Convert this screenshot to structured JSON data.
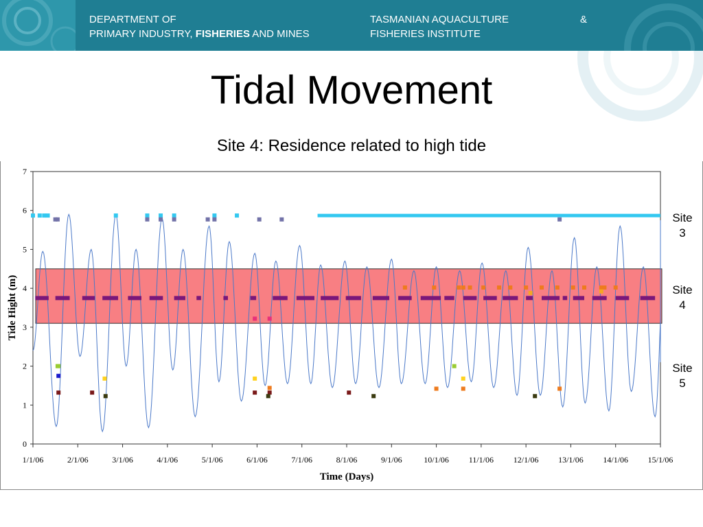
{
  "header": {
    "dept_line1": "DEPARTMENT OF",
    "dept_line2_a": "PRIMARY INDUSTRY, ",
    "dept_line2_b": "FISHERIES",
    "dept_line2_c": " AND MINES",
    "inst_line1": "TASMANIAN AQUACULTURE",
    "inst_amp": "&",
    "inst_line2": "FISHERIES INSTITUTE"
  },
  "slide_title": "Tidal Movement",
  "chart_data": {
    "type": "line",
    "title": "Site 4: Residence related to high tide",
    "xlabel": "Time (Days)",
    "ylabel": "Tide Hight (m)",
    "categories": [
      "1/1/06",
      "2/1/06",
      "3/1/06",
      "4/1/06",
      "5/1/06",
      "6/1/06",
      "7/1/06",
      "8/1/06",
      "9/1/06",
      "10/1/06",
      "11/1/06",
      "12/1/06",
      "13/1/06",
      "14/1/06",
      "15/1/06"
    ],
    "x_range": [
      0,
      14
    ],
    "ylim": [
      0,
      7
    ],
    "yticks": [
      0,
      1,
      2,
      3,
      4,
      5,
      6,
      7
    ],
    "grid": false,
    "legend": "none",
    "tide_series": {
      "color": "#4a78c8",
      "peaks": [
        [
          0.0,
          2.4
        ],
        [
          0.22,
          4.95
        ],
        [
          0.52,
          0.45
        ],
        [
          0.8,
          5.9
        ],
        [
          1.05,
          2.25
        ],
        [
          1.3,
          5.0
        ],
        [
          1.55,
          0.32
        ],
        [
          1.85,
          5.9
        ],
        [
          2.08,
          2.0
        ],
        [
          2.3,
          5.0
        ],
        [
          2.58,
          0.42
        ],
        [
          2.88,
          5.8
        ],
        [
          3.12,
          1.9
        ],
        [
          3.35,
          5.0
        ],
        [
          3.62,
          0.7
        ],
        [
          3.93,
          5.6
        ],
        [
          4.15,
          1.6
        ],
        [
          4.38,
          5.2
        ],
        [
          4.65,
          1.1
        ],
        [
          4.95,
          4.9
        ],
        [
          5.18,
          1.5
        ],
        [
          5.42,
          4.7
        ],
        [
          5.68,
          1.55
        ],
        [
          5.95,
          5.1
        ],
        [
          6.2,
          1.55
        ],
        [
          6.42,
          4.6
        ],
        [
          6.68,
          1.45
        ],
        [
          6.96,
          4.7
        ],
        [
          7.2,
          1.55
        ],
        [
          7.45,
          4.55
        ],
        [
          7.72,
          1.45
        ],
        [
          8.0,
          4.75
        ],
        [
          8.22,
          1.55
        ],
        [
          8.5,
          4.45
        ],
        [
          8.75,
          1.55
        ],
        [
          9.0,
          4.55
        ],
        [
          9.25,
          1.45
        ],
        [
          9.52,
          4.45
        ],
        [
          9.78,
          1.6
        ],
        [
          10.02,
          4.65
        ],
        [
          10.28,
          1.45
        ],
        [
          10.55,
          4.45
        ],
        [
          10.8,
          1.25
        ],
        [
          11.05,
          5.05
        ],
        [
          11.32,
          1.25
        ],
        [
          11.58,
          4.45
        ],
        [
          11.82,
          0.95
        ],
        [
          12.08,
          5.3
        ],
        [
          12.32,
          1.05
        ],
        [
          12.58,
          4.55
        ],
        [
          12.85,
          0.85
        ],
        [
          13.1,
          5.6
        ],
        [
          13.35,
          1.35
        ],
        [
          13.62,
          4.55
        ],
        [
          13.88,
          0.7
        ],
        [
          14.12,
          5.75
        ],
        [
          14.3,
          2.1
        ]
      ]
    },
    "site_band": {
      "y_min": 3.1,
      "y_max": 4.5,
      "fill": "#f87f83",
      "edge": "#333333"
    },
    "site_labels": [
      {
        "label": "Site 3",
        "line1": "Site",
        "line2": "3",
        "y": 5.6
      },
      {
        "label": "Site 4",
        "line1": "Site",
        "line2": "4",
        "y": 3.75
      },
      {
        "label": "Site 5",
        "line1": "Site",
        "line2": "5",
        "y": 1.75
      }
    ],
    "site3_line": {
      "y": 5.87,
      "color": "#33c8f0",
      "segments": [
        [
          6.35,
          14.3
        ]
      ],
      "points": [
        0.0,
        0.15,
        0.25,
        0.33,
        1.85,
        2.55,
        2.85,
        3.15,
        4.05,
        4.55
      ]
    },
    "site3_purple": {
      "y": 5.77,
      "color": "#7272a8",
      "points": [
        0.5,
        0.55,
        2.55,
        2.85,
        3.15,
        3.9,
        4.05,
        5.05,
        5.55,
        11.75
      ]
    },
    "site4_line": {
      "y": 3.75,
      "color": "#7a177a",
      "segments": [
        [
          0.05,
          0.35
        ],
        [
          0.5,
          0.82
        ],
        [
          1.1,
          1.38
        ],
        [
          1.55,
          1.9
        ],
        [
          2.12,
          2.42
        ],
        [
          2.6,
          2.9
        ],
        [
          3.15,
          3.4
        ],
        [
          3.65,
          3.75
        ],
        [
          4.25,
          4.35
        ],
        [
          4.85,
          4.98
        ],
        [
          5.35,
          5.68
        ],
        [
          5.88,
          6.28
        ],
        [
          6.42,
          6.82
        ],
        [
          6.98,
          7.32
        ],
        [
          7.58,
          7.95
        ],
        [
          8.15,
          8.45
        ],
        [
          8.65,
          9.1
        ],
        [
          9.18,
          9.4
        ],
        [
          9.6,
          9.9
        ],
        [
          10.05,
          10.35
        ],
        [
          10.48,
          10.82
        ],
        [
          11.0,
          11.15
        ],
        [
          11.35,
          11.75
        ],
        [
          11.82,
          11.92
        ],
        [
          12.05,
          12.3
        ],
        [
          12.48,
          12.8
        ],
        [
          13.0,
          13.3
        ],
        [
          13.55,
          13.88
        ]
      ]
    },
    "site4_orange": {
      "y": 4.02,
      "color": "#ee7b1e",
      "points": [
        8.3,
        8.95,
        9.5,
        9.6,
        9.75,
        10.05,
        10.4,
        10.65,
        11.0,
        11.35,
        11.7,
        12.05,
        12.3,
        12.68,
        12.75,
        13.0
      ]
    },
    "site4_extra": [
      {
        "x": 11.1,
        "y": 3.88,
        "color": "#f5a623"
      },
      {
        "x": 12.68,
        "y": 3.92,
        "color": "#f5a623"
      },
      {
        "x": 4.95,
        "y": 3.22,
        "color": "#e8307a"
      },
      {
        "x": 5.28,
        "y": 3.22,
        "color": "#e8307a"
      }
    ],
    "site5_points": [
      {
        "x": 0.55,
        "y": 2.0,
        "color": "#99cc33"
      },
      {
        "x": 0.57,
        "y": 2.0,
        "color": "#99cc33"
      },
      {
        "x": 9.4,
        "y": 2.0,
        "color": "#99cc33"
      },
      {
        "x": 0.57,
        "y": 1.75,
        "color": "#1a1acc"
      },
      {
        "x": 1.6,
        "y": 1.68,
        "color": "#ffd21f"
      },
      {
        "x": 4.95,
        "y": 1.68,
        "color": "#ffd21f"
      },
      {
        "x": 9.6,
        "y": 1.68,
        "color": "#ffd21f"
      },
      {
        "x": 5.28,
        "y": 1.44,
        "color": "#ee7b1e"
      },
      {
        "x": 9.0,
        "y": 1.42,
        "color": "#ee7b1e"
      },
      {
        "x": 9.6,
        "y": 1.42,
        "color": "#ee7b1e"
      },
      {
        "x": 11.75,
        "y": 1.42,
        "color": "#ee7b1e"
      },
      {
        "x": 0.57,
        "y": 1.32,
        "color": "#7a1a1a"
      },
      {
        "x": 1.32,
        "y": 1.32,
        "color": "#7a1a1a"
      },
      {
        "x": 4.95,
        "y": 1.32,
        "color": "#7a1a1a"
      },
      {
        "x": 5.28,
        "y": 1.32,
        "color": "#7a1a1a"
      },
      {
        "x": 7.05,
        "y": 1.32,
        "color": "#7a1a1a"
      },
      {
        "x": 1.62,
        "y": 1.23,
        "color": "#3a3a10"
      },
      {
        "x": 5.25,
        "y": 1.23,
        "color": "#3a3a10"
      },
      {
        "x": 7.6,
        "y": 1.23,
        "color": "#3a3a10"
      },
      {
        "x": 11.2,
        "y": 1.23,
        "color": "#3a3a10"
      }
    ]
  }
}
